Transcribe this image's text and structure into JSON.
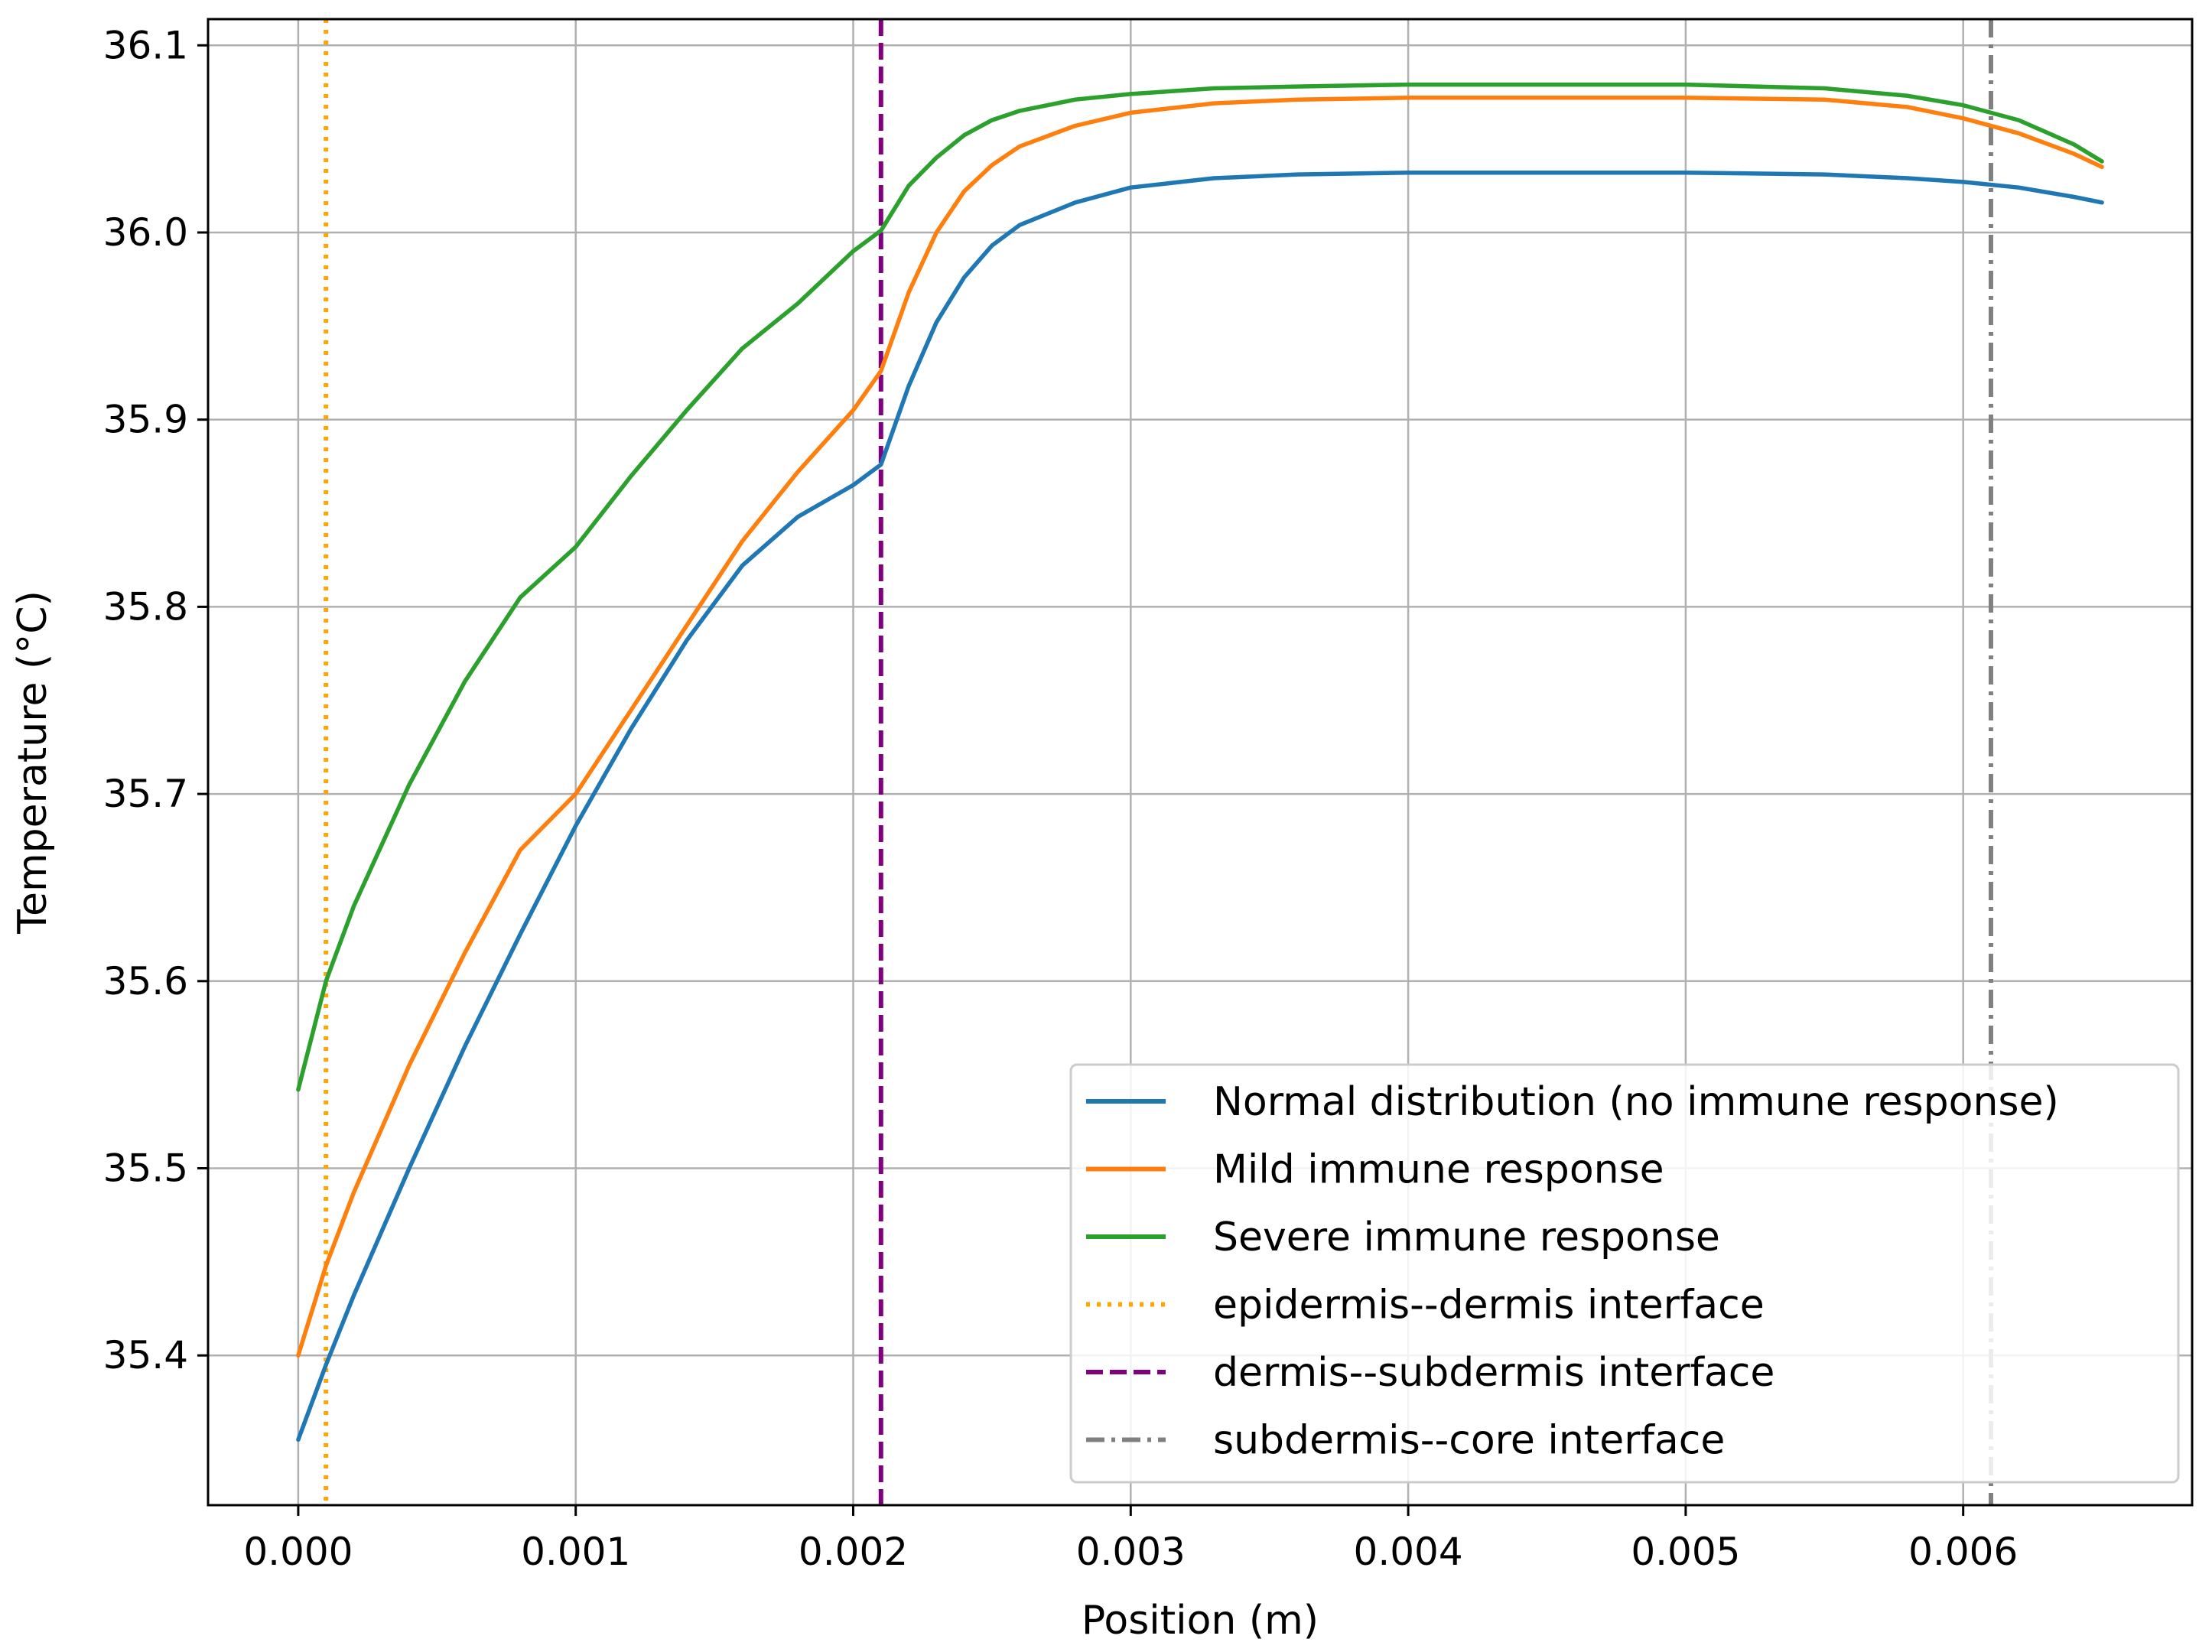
{
  "chart_data": {
    "type": "line",
    "title": "",
    "xlabel": "Position (m)",
    "ylabel": "Temperature (°C)",
    "xlim": [
      -0.000325,
      0.006825
    ],
    "ylim": [
      35.32,
      36.114
    ],
    "grid": true,
    "legend_position": "lower-right",
    "x_ticks": [
      0.0,
      0.001,
      0.002,
      0.003,
      0.004,
      0.005,
      0.006
    ],
    "x_tick_labels": [
      "0.000",
      "0.001",
      "0.002",
      "0.003",
      "0.004",
      "0.005",
      "0.006"
    ],
    "y_ticks": [
      35.4,
      35.5,
      35.6,
      35.7,
      35.8,
      35.9,
      36.0,
      36.1
    ],
    "y_tick_labels": [
      "35.4",
      "35.5",
      "35.6",
      "35.7",
      "35.8",
      "35.9",
      "36.0",
      "36.1"
    ],
    "series": [
      {
        "name": "Normal distribution (no immune response)",
        "color": "#1f77b4",
        "points": [
          [
            0.0,
            35.355
          ],
          [
            0.0001,
            35.395
          ],
          [
            0.0002,
            35.432
          ],
          [
            0.0004,
            35.5
          ],
          [
            0.0006,
            35.565
          ],
          [
            0.0008,
            35.625
          ],
          [
            0.001,
            35.683
          ],
          [
            0.0012,
            35.735
          ],
          [
            0.0014,
            35.782
          ],
          [
            0.0016,
            35.822
          ],
          [
            0.0018,
            35.848
          ],
          [
            0.002,
            35.865
          ],
          [
            0.0021,
            35.876
          ],
          [
            0.0022,
            35.918
          ],
          [
            0.0023,
            35.952
          ],
          [
            0.0024,
            35.976
          ],
          [
            0.0025,
            35.993
          ],
          [
            0.0026,
            36.004
          ],
          [
            0.0028,
            36.016
          ],
          [
            0.003,
            36.024
          ],
          [
            0.0033,
            36.029
          ],
          [
            0.0036,
            36.031
          ],
          [
            0.004,
            36.032
          ],
          [
            0.0045,
            36.032
          ],
          [
            0.005,
            36.032
          ],
          [
            0.0055,
            36.031
          ],
          [
            0.0058,
            36.029
          ],
          [
            0.006,
            36.027
          ],
          [
            0.0062,
            36.024
          ],
          [
            0.0064,
            36.019
          ],
          [
            0.0065,
            36.016
          ]
        ]
      },
      {
        "name": "Mild immune response",
        "color": "#ff7f0e",
        "points": [
          [
            0.0,
            35.4
          ],
          [
            0.0001,
            35.448
          ],
          [
            0.0002,
            35.487
          ],
          [
            0.0004,
            35.555
          ],
          [
            0.0006,
            35.615
          ],
          [
            0.0008,
            35.67
          ],
          [
            0.001,
            35.7
          ],
          [
            0.0012,
            35.745
          ],
          [
            0.0014,
            35.79
          ],
          [
            0.0016,
            35.835
          ],
          [
            0.0018,
            35.872
          ],
          [
            0.002,
            35.905
          ],
          [
            0.0021,
            35.926
          ],
          [
            0.0022,
            35.968
          ],
          [
            0.0023,
            36.0
          ],
          [
            0.0024,
            36.022
          ],
          [
            0.0025,
            36.036
          ],
          [
            0.0026,
            36.046
          ],
          [
            0.0028,
            36.057
          ],
          [
            0.003,
            36.064
          ],
          [
            0.0033,
            36.069
          ],
          [
            0.0036,
            36.071
          ],
          [
            0.004,
            36.072
          ],
          [
            0.0045,
            36.072
          ],
          [
            0.005,
            36.072
          ],
          [
            0.0055,
            36.071
          ],
          [
            0.0058,
            36.067
          ],
          [
            0.006,
            36.061
          ],
          [
            0.0062,
            36.053
          ],
          [
            0.0064,
            36.042
          ],
          [
            0.0065,
            36.035
          ]
        ]
      },
      {
        "name": "Severe immune response",
        "color": "#2ca02c",
        "points": [
          [
            0.0,
            35.542
          ],
          [
            0.0001,
            35.6
          ],
          [
            0.0002,
            35.64
          ],
          [
            0.0004,
            35.705
          ],
          [
            0.0006,
            35.76
          ],
          [
            0.0008,
            35.805
          ],
          [
            0.001,
            35.832
          ],
          [
            0.0012,
            35.87
          ],
          [
            0.0014,
            35.905
          ],
          [
            0.0016,
            35.938
          ],
          [
            0.0018,
            35.962
          ],
          [
            0.002,
            35.99
          ],
          [
            0.0021,
            36.001
          ],
          [
            0.0022,
            36.025
          ],
          [
            0.0023,
            36.04
          ],
          [
            0.0024,
            36.052
          ],
          [
            0.0025,
            36.06
          ],
          [
            0.0026,
            36.065
          ],
          [
            0.0028,
            36.071
          ],
          [
            0.003,
            36.074
          ],
          [
            0.0033,
            36.077
          ],
          [
            0.0036,
            36.078
          ],
          [
            0.004,
            36.079
          ],
          [
            0.0045,
            36.079
          ],
          [
            0.005,
            36.079
          ],
          [
            0.0055,
            36.077
          ],
          [
            0.0058,
            36.073
          ],
          [
            0.006,
            36.068
          ],
          [
            0.0062,
            36.06
          ],
          [
            0.0064,
            36.047
          ],
          [
            0.0065,
            36.038
          ]
        ]
      }
    ],
    "vertical_lines": [
      {
        "name": "epidermis--dermis interface",
        "x": 0.0001,
        "color": "#ffa500",
        "style": "dotted"
      },
      {
        "name": "dermis--subdermis interface",
        "x": 0.0021,
        "color": "#800080",
        "style": "dashed"
      },
      {
        "name": "subdermis--core interface",
        "x": 0.0061,
        "color": "#808080",
        "style": "dashdot"
      }
    ]
  }
}
